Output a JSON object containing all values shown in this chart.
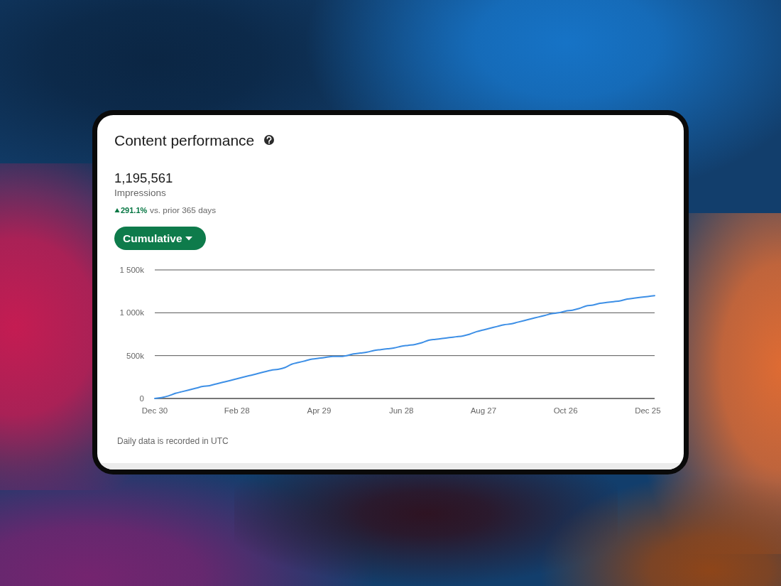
{
  "chart_data": {
    "type": "line",
    "title": "Content performance",
    "annotations": [
      "1,195,561",
      "Impressions",
      "291.1%",
      "vs. prior 365 days",
      "Cumulative",
      "Daily data is recorded in UTC"
    ],
    "categories": [
      "Dec 30",
      null,
      null,
      null,
      null,
      null,
      null,
      null,
      null,
      null,
      null,
      null,
      "Feb 28",
      null,
      null,
      null,
      null,
      null,
      null,
      null,
      null,
      null,
      null,
      null,
      "Apr 29",
      null,
      null,
      null,
      null,
      null,
      null,
      null,
      null,
      null,
      null,
      null,
      "Jun 28",
      null,
      null,
      null,
      null,
      null,
      null,
      null,
      null,
      null,
      null,
      null,
      "Aug 27",
      null,
      null,
      null,
      null,
      null,
      null,
      null,
      null,
      null,
      null,
      null,
      "Oct 26",
      null,
      null,
      null,
      null,
      null,
      null,
      null,
      null,
      null,
      null,
      null,
      "Dec 25",
      null
    ],
    "values": [
      0,
      10000,
      30000,
      60000,
      80000,
      100000,
      120000,
      140000,
      150000,
      170000,
      190000,
      210000,
      230000,
      250000,
      270000,
      290000,
      310000,
      330000,
      340000,
      360000,
      400000,
      420000,
      440000,
      460000,
      470000,
      480000,
      490000,
      490000,
      500000,
      520000,
      530000,
      540000,
      560000,
      570000,
      580000,
      590000,
      610000,
      620000,
      630000,
      650000,
      680000,
      690000,
      700000,
      710000,
      720000,
      730000,
      750000,
      780000,
      800000,
      820000,
      840000,
      860000,
      870000,
      890000,
      910000,
      930000,
      950000,
      970000,
      990000,
      1000000,
      1020000,
      1030000,
      1050000,
      1080000,
      1090000,
      1110000,
      1120000,
      1130000,
      1140000,
      1160000,
      1170000,
      1180000,
      1190000,
      1200000
    ],
    "color": "#3d8fe6",
    "ylim": [
      0,
      1500000
    ],
    "yticks": [
      {
        "value": 0,
        "label": "0"
      },
      {
        "value": 500000,
        "label": "500k"
      },
      {
        "value": 1000000,
        "label": "1 000k"
      },
      {
        "value": 1500000,
        "label": "1 500k"
      }
    ],
    "grid": "y"
  }
}
